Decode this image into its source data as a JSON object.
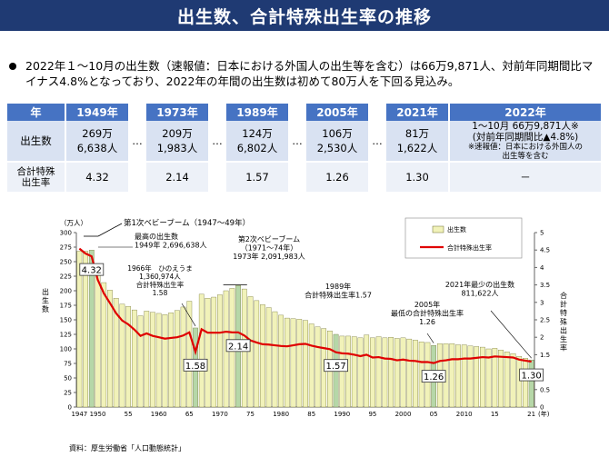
{
  "title": "出生数、合計特殊出生率の推移",
  "bullet": "2022年１～10月の出生数（速報値：日本における外国人の出生等を含む）は66万9,871人、対前年同期間比マイナス4.8%となっており、2022年の年間の出生数は初めて80万人を下回る見込み。",
  "table": {
    "header_label": "年",
    "gap": "…",
    "row1_label": "出生数",
    "row2_label": "合計特殊\n出生率",
    "years": [
      "1949年",
      "1973年",
      "1989年",
      "2005年",
      "2021年",
      "2022年"
    ],
    "births": [
      "269万\n6,638人",
      "209万\n1,983人",
      "124万\n6,802人",
      "106万\n2,530人",
      "81万\n1,622人",
      ""
    ],
    "tfr": [
      "4.32",
      "2.14",
      "1.57",
      "1.26",
      "1.30",
      "－"
    ],
    "y2022_main": "1～10月 66万9,871人※",
    "y2022_sub": "(対前年同期間比▲4.8%)",
    "y2022_note": "※速報値：日本における外国人の\n出生等を含む"
  },
  "source": "資料：厚生労働省「人口動態統計」",
  "chart_data": {
    "type": "bar",
    "x": [
      1947,
      1948,
      1949,
      1950,
      1951,
      1952,
      1953,
      1954,
      1955,
      1956,
      1957,
      1958,
      1959,
      1960,
      1961,
      1962,
      1963,
      1964,
      1965,
      1966,
      1967,
      1968,
      1969,
      1970,
      1971,
      1972,
      1973,
      1974,
      1975,
      1976,
      1977,
      1978,
      1979,
      1980,
      1981,
      1982,
      1983,
      1984,
      1985,
      1986,
      1987,
      1988,
      1989,
      1990,
      1991,
      1992,
      1993,
      1994,
      1995,
      1996,
      1997,
      1998,
      1999,
      2000,
      2001,
      2002,
      2003,
      2004,
      2005,
      2006,
      2007,
      2008,
      2009,
      2010,
      2011,
      2012,
      2013,
      2014,
      2015,
      2016,
      2017,
      2018,
      2019,
      2020,
      2021
    ],
    "series": [
      {
        "name": "出生数",
        "axis": "left",
        "unit": "万人",
        "values": [
          268,
          268,
          270,
          234,
          214,
          201,
          187,
          177,
          173,
          167,
          157,
          165,
          163,
          161,
          159,
          162,
          166,
          172,
          182,
          136,
          194,
          187,
          189,
          193,
          200,
          204,
          209,
          203,
          190,
          183,
          176,
          171,
          164,
          158,
          153,
          152,
          151,
          149,
          143,
          138,
          135,
          131,
          125,
          122,
          122,
          121,
          119,
          124,
          119,
          121,
          119,
          120,
          118,
          119,
          117,
          115,
          112,
          111,
          106,
          109,
          109,
          109,
          107,
          107,
          105,
          104,
          103,
          100,
          101,
          98,
          95,
          92,
          87,
          84,
          81
        ]
      },
      {
        "name": "合計特殊出生率",
        "axis": "right",
        "values": [
          4.54,
          4.4,
          4.32,
          3.65,
          3.26,
          2.98,
          2.69,
          2.48,
          2.37,
          2.22,
          2.04,
          2.11,
          2.04,
          2.0,
          1.96,
          1.98,
          2.0,
          2.05,
          2.14,
          1.58,
          2.23,
          2.13,
          2.13,
          2.13,
          2.16,
          2.14,
          2.14,
          2.05,
          1.91,
          1.85,
          1.8,
          1.79,
          1.77,
          1.75,
          1.74,
          1.77,
          1.8,
          1.81,
          1.76,
          1.72,
          1.69,
          1.66,
          1.57,
          1.54,
          1.53,
          1.5,
          1.46,
          1.5,
          1.42,
          1.43,
          1.39,
          1.38,
          1.34,
          1.36,
          1.33,
          1.32,
          1.29,
          1.29,
          1.26,
          1.32,
          1.34,
          1.37,
          1.37,
          1.39,
          1.39,
          1.41,
          1.43,
          1.42,
          1.45,
          1.44,
          1.43,
          1.42,
          1.36,
          1.33,
          1.3
        ]
      }
    ],
    "ylabel_left": "出\n生\n数",
    "ylabel_right": "合\n計\n特\n殊\n出\n生\n率",
    "y_unit_left": "（万人）",
    "x_unit": "(年)",
    "ylim_left": [
      0,
      300
    ],
    "ylim_right": [
      0,
      5
    ],
    "yticks_left": [
      0,
      25,
      50,
      75,
      100,
      125,
      150,
      175,
      200,
      225,
      250,
      275,
      300
    ],
    "yticks_right": [
      0,
      0.5,
      1,
      1.5,
      2,
      2.5,
      3,
      3.5,
      4,
      4.5,
      5
    ],
    "xtick_labels": [
      {
        "year": 1947,
        "label": "1947"
      },
      {
        "year": 1950,
        "label": "1950"
      },
      {
        "year": 1955,
        "label": "55"
      },
      {
        "year": 1960,
        "label": "1960"
      },
      {
        "year": 1965,
        "label": "65"
      },
      {
        "year": 1970,
        "label": "1970"
      },
      {
        "year": 1975,
        "label": "75"
      },
      {
        "year": 1980,
        "label": "1980"
      },
      {
        "year": 1985,
        "label": "85"
      },
      {
        "year": 1990,
        "label": "1990"
      },
      {
        "year": 1995,
        "label": "95"
      },
      {
        "year": 2000,
        "label": "2000"
      },
      {
        "year": 2005,
        "label": "05"
      },
      {
        "year": 2010,
        "label": "2010"
      },
      {
        "year": 2015,
        "label": "15"
      },
      {
        "year": 2021,
        "label": "21"
      }
    ],
    "highlight_years": [
      1949,
      1966,
      1973,
      1989,
      2005,
      2021
    ],
    "tfr_boxes": [
      {
        "year": 1949,
        "label": "4.32"
      },
      {
        "year": 1966,
        "label": "1.58"
      },
      {
        "year": 1973,
        "label": "2.14"
      },
      {
        "year": 1989,
        "label": "1.57"
      },
      {
        "year": 2005,
        "label": "1.26"
      },
      {
        "year": 2021,
        "label": "1.30"
      }
    ],
    "annotations": {
      "boom1": "第1次ベビーブーム（1947～49年）",
      "max_births": "最高の出生数\n1949年 2,696,638人",
      "hinoeuma": "1966年　ひのえうま\n1,360,974人\n合計特殊出生率\n1.58",
      "boom2": "第2次ベビーブーム\n（1971～74年）\n1973年 2,091,983人",
      "y1989": "1989年\n合計特殊出生率1.57",
      "y2005": "2005年\n最低の合計特殊出生率\n1.26",
      "y2021": "2021年最少の出生数\n811,622人"
    },
    "legend": {
      "position": "top-right",
      "bar": "出生数",
      "line": "合計特殊出生率"
    },
    "colors": {
      "bar": "#f1f2b9",
      "bar_highlight": "#b6d7a8",
      "bar_stroke": "#6b6b2a",
      "line": "#e00000",
      "header": "#1f3a73"
    }
  }
}
